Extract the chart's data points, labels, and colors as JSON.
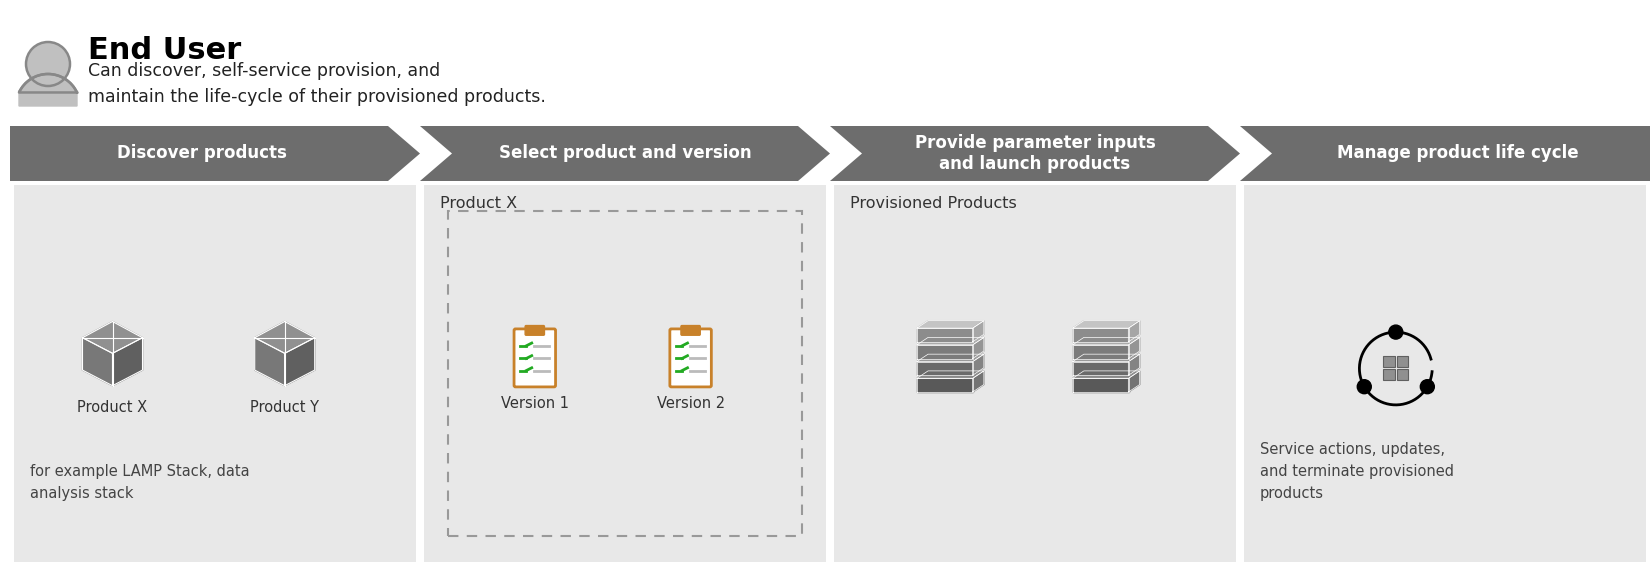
{
  "title": "End User",
  "subtitle": "Can discover, self-service provision, and\nmaintain the life-cycle of their provisioned products.",
  "arrow_color": "#6d6d6d",
  "arrow_text_color": "#ffffff",
  "panel_bg_color": "#e8e8e8",
  "steps": [
    {
      "label": "Discover products",
      "content_title": "",
      "content_body": "for example LAMP Stack, data\nanalysis stack",
      "icon_type": "two_boxes",
      "icon_labels": [
        "Product X",
        "Product Y"
      ]
    },
    {
      "label": "Select product and version",
      "content_title": "Product X",
      "content_body": "",
      "icon_type": "two_clipboards",
      "icon_labels": [
        "Version 1",
        "Version 2"
      ]
    },
    {
      "label": "Provide parameter inputs\nand launch products",
      "content_title": "Provisioned Products",
      "content_body": "",
      "icon_type": "two_stacks",
      "icon_labels": []
    },
    {
      "label": "Manage product life cycle",
      "content_title": "",
      "content_body": "Service actions, updates,\nand terminate provisioned\nproducts",
      "icon_type": "cycle_boxes",
      "icon_labels": []
    }
  ],
  "background_color": "#ffffff",
  "figure_width": 16.5,
  "figure_height": 5.76
}
